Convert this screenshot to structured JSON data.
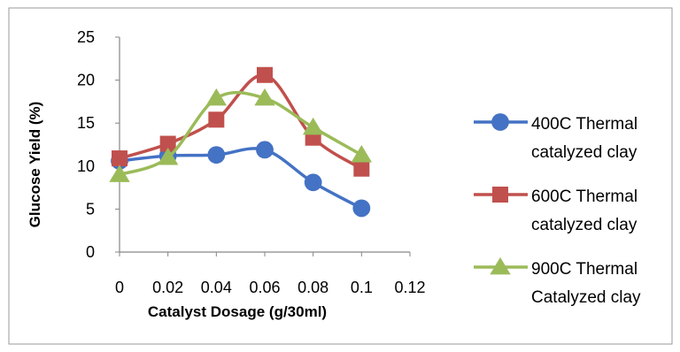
{
  "chart_data": {
    "type": "line",
    "title": "",
    "xlabel": "Catalyst Dosage (g/30ml)",
    "ylabel": "Glucose Yield (%)",
    "xlim": [
      0,
      0.12
    ],
    "ylim": [
      0,
      25
    ],
    "x_ticks": [
      "0",
      "0.02",
      "0.04",
      "0.06",
      "0.08",
      "0.1",
      "0.12"
    ],
    "y_ticks": [
      "0",
      "5",
      "10",
      "15",
      "20",
      "25"
    ],
    "grid": false,
    "legend_position": "right",
    "x": [
      0,
      0.02,
      0.04,
      0.06,
      0.08,
      0.1
    ],
    "series": [
      {
        "name_lines": [
          "400C Thermal",
          "catalyzed clay"
        ],
        "values": [
          10.6,
          11.2,
          11.3,
          11.9,
          8.1,
          5.1
        ],
        "color": "#4472C4",
        "marker": "circle"
      },
      {
        "name_lines": [
          "600C Thermal",
          "catalyzed clay"
        ],
        "values": [
          10.9,
          12.6,
          15.4,
          20.6,
          13.3,
          9.7
        ],
        "color": "#C0504D",
        "marker": "square"
      },
      {
        "name_lines": [
          "900C Thermal",
          "Catalyzed clay"
        ],
        "values": [
          9.0,
          11.0,
          17.9,
          17.9,
          14.5,
          11.3
        ],
        "color": "#9BBB59",
        "marker": "triangle"
      }
    ]
  }
}
